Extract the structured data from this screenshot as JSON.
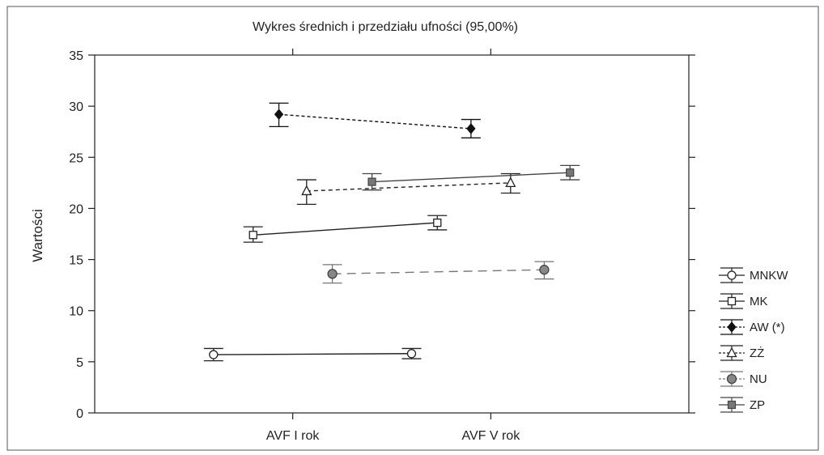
{
  "chart_data": {
    "type": "line",
    "title": "Wykres średnich i przedziału ufności (95,00%)",
    "xlabel": "",
    "ylabel": "Wartości",
    "ylim": [
      0,
      35
    ],
    "yticks": [
      "0",
      "5",
      "10",
      "15",
      "20",
      "25",
      "30",
      "35"
    ],
    "categories": [
      "AVF I rok",
      "AVF V rok"
    ],
    "grid": false,
    "legend_position": "right",
    "series": [
      {
        "name": "MNKW",
        "marker": "circle-open",
        "line": "solid",
        "color": "#222222",
        "x": [
          0.6,
          1.6
        ],
        "values": [
          5.7,
          5.8
        ],
        "ci_low": [
          5.1,
          5.3
        ],
        "ci_high": [
          6.3,
          6.3
        ]
      },
      {
        "name": "MK",
        "marker": "square-open",
        "line": "solid",
        "color": "#222222",
        "x": [
          0.8,
          1.73
        ],
        "values": [
          17.4,
          18.6
        ],
        "ci_low": [
          16.7,
          17.9
        ],
        "ci_high": [
          18.2,
          19.3
        ]
      },
      {
        "name": "AW (*)",
        "marker": "diamond-filled",
        "line": "dotted",
        "color": "#111111",
        "x": [
          0.93,
          1.9
        ],
        "values": [
          29.2,
          27.8
        ],
        "ci_low": [
          28.0,
          26.9
        ],
        "ci_high": [
          30.3,
          28.7
        ]
      },
      {
        "name": "ZŻ",
        "marker": "triangle-open",
        "line": "dashed",
        "color": "#222222",
        "x": [
          1.07,
          2.1
        ],
        "values": [
          21.7,
          22.5
        ],
        "ci_low": [
          20.4,
          21.5
        ],
        "ci_high": [
          22.8,
          23.4
        ]
      },
      {
        "name": "NU",
        "marker": "circle-gray",
        "line": "longdash",
        "color": "#777777",
        "x": [
          1.2,
          2.27
        ],
        "values": [
          13.6,
          14.0
        ],
        "ci_low": [
          12.7,
          13.1
        ],
        "ci_high": [
          14.5,
          14.8
        ]
      },
      {
        "name": "ZP",
        "marker": "square-gray",
        "line": "solid",
        "color": "#444444",
        "x": [
          1.4,
          2.4
        ],
        "values": [
          22.6,
          23.5
        ],
        "ci_low": [
          21.8,
          22.8
        ],
        "ci_high": [
          23.4,
          24.2
        ]
      }
    ]
  }
}
